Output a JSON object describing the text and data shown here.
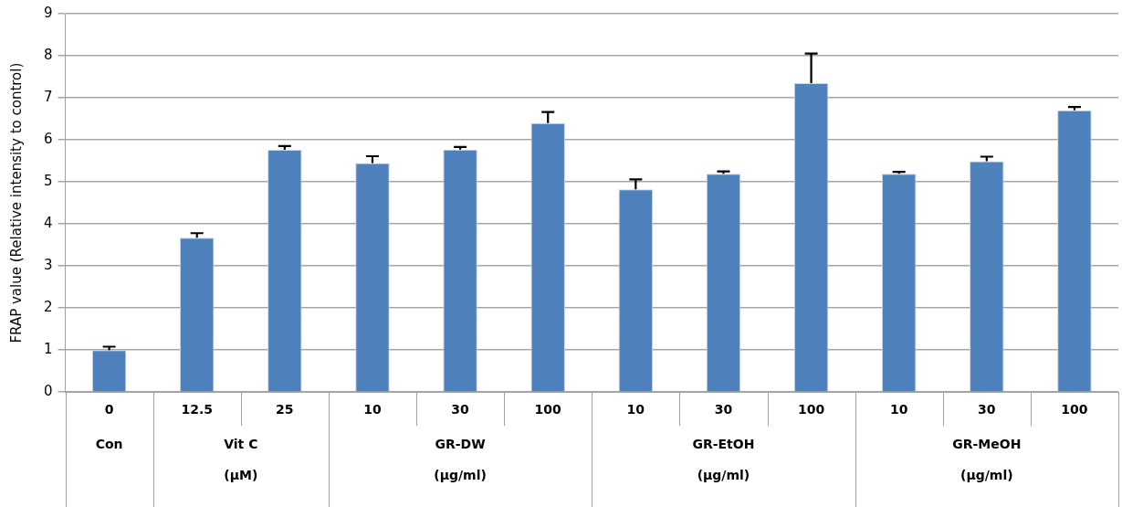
{
  "chart_data": {
    "type": "bar",
    "ylabel": "FRAP value (Relative intensity to control)",
    "categories": [
      "0",
      "12.5",
      "25",
      "10",
      "30",
      "100",
      "10",
      "30",
      "100",
      "10",
      "30",
      "100"
    ],
    "values": [
      1.0,
      3.67,
      5.76,
      5.45,
      5.77,
      6.4,
      4.82,
      5.19,
      7.35,
      5.19,
      5.49,
      6.7
    ],
    "errors": [
      [
        1.0,
        1.08
      ],
      [
        3.67,
        3.78
      ],
      [
        5.76,
        5.85
      ],
      [
        5.45,
        5.61
      ],
      [
        5.77,
        5.83
      ],
      [
        6.4,
        6.66
      ],
      [
        4.82,
        5.06
      ],
      [
        5.19,
        5.25
      ],
      [
        7.35,
        8.05
      ],
      [
        5.19,
        5.24
      ],
      [
        5.49,
        5.6
      ],
      [
        6.7,
        6.78
      ]
    ],
    "color": "#4f81bd",
    "ylim": [
      0,
      9
    ],
    "yticks": [
      0,
      1,
      2,
      3,
      4,
      5,
      6,
      7,
      8,
      9
    ],
    "grid": "y",
    "annotations": [
      "Con",
      "Vit C\n(μM)",
      "GR-DW\n(μg/ml)",
      "GR-EtOH\n(μg/ml)",
      "GR-MeOH\n(μg/ml)"
    ]
  }
}
